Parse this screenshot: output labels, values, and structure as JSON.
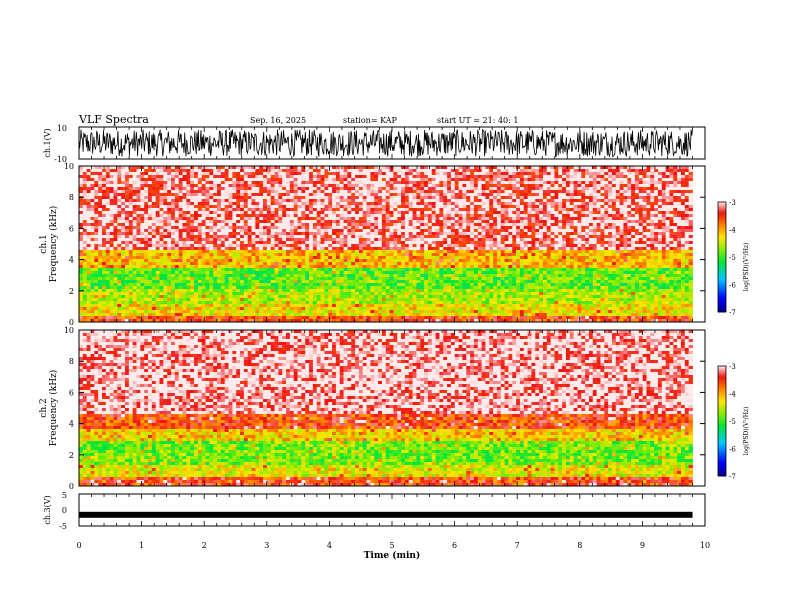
{
  "header": {
    "title": "VLF Spectra",
    "date": "Sep. 16, 2025",
    "station": "station= KAP",
    "start": "start  UT  =   21: 40: 1"
  },
  "chart_data": [
    {
      "type": "line",
      "name": "ch1-waveform",
      "ylabel": "ch.1(V)",
      "ylim": [
        -10,
        10
      ],
      "ytick_labels": [
        "10",
        "-10"
      ],
      "xlim": [
        0,
        10
      ],
      "data_extent_min": 9.8,
      "description_values": "dense noise-like voltage oscillating approximately between -8 and 8 V"
    },
    {
      "type": "heatmap",
      "name": "ch1-spectrogram",
      "ylabel": "ch.1\nFrequency (kHz)",
      "ylabel_lines": [
        "ch.1",
        "Frequency (kHz)"
      ],
      "ylim": [
        0,
        10
      ],
      "ytick_labels": [
        "0",
        "2",
        "4",
        "6",
        "8",
        "10"
      ],
      "xlim": [
        0,
        10
      ],
      "colorbar": {
        "label": "log(PSD)(V²/Hz)",
        "range": [
          -7,
          -3
        ],
        "tick_labels": [
          "-3",
          "-4",
          "-5",
          "-6",
          "-7"
        ]
      },
      "bands": [
        {
          "from_khz": 0.0,
          "to_khz": 0.4,
          "level": -3.6
        },
        {
          "from_khz": 0.4,
          "to_khz": 1.2,
          "level": -4.3
        },
        {
          "from_khz": 1.2,
          "to_khz": 2.1,
          "level": -4.6
        },
        {
          "from_khz": 2.1,
          "to_khz": 3.4,
          "level": -4.9
        },
        {
          "from_khz": 3.4,
          "to_khz": 4.6,
          "level": -4.1
        },
        {
          "from_khz": 4.6,
          "to_khz": 10.0,
          "level": -3.2
        }
      ]
    },
    {
      "type": "heatmap",
      "name": "ch2-spectrogram",
      "ylabel": "ch.2\nFrequency (kHz)",
      "ylabel_lines": [
        "ch.2",
        "Frequency (kHz)"
      ],
      "ylim": [
        0,
        10
      ],
      "ytick_labels": [
        "0",
        "2",
        "4",
        "6",
        "8",
        "10"
      ],
      "xlim": [
        0,
        10
      ],
      "colorbar": {
        "label": "log(PSD)(V²/Hz)",
        "range": [
          -7,
          -3
        ],
        "tick_labels": [
          "-3",
          "-4",
          "-5",
          "-6",
          "-7"
        ]
      },
      "bands": [
        {
          "from_khz": 0.0,
          "to_khz": 0.5,
          "level": -3.6
        },
        {
          "from_khz": 0.5,
          "to_khz": 1.4,
          "level": -4.4
        },
        {
          "from_khz": 1.4,
          "to_khz": 2.8,
          "level": -4.8
        },
        {
          "from_khz": 2.8,
          "to_khz": 3.6,
          "level": -4.2
        },
        {
          "from_khz": 3.6,
          "to_khz": 4.6,
          "level": -3.6
        },
        {
          "from_khz": 4.6,
          "to_khz": 10.0,
          "level": -3.1
        }
      ]
    },
    {
      "type": "line",
      "name": "ch3-waveform",
      "ylabel": "ch.3(V)",
      "ylim": [
        -5,
        5
      ],
      "ytick_labels": [
        "5",
        "0",
        "-5"
      ],
      "xlim": [
        0,
        10
      ],
      "description_values": "near-constant thick band at approximately -1.5 V"
    }
  ],
  "xaxis": {
    "label": "Time (min)",
    "tick_labels": [
      "0",
      "1",
      "2",
      "3",
      "4",
      "5",
      "6",
      "7",
      "8",
      "9",
      "10"
    ]
  },
  "colors": {
    "axis": "#000000",
    "background": "#ffffff"
  }
}
